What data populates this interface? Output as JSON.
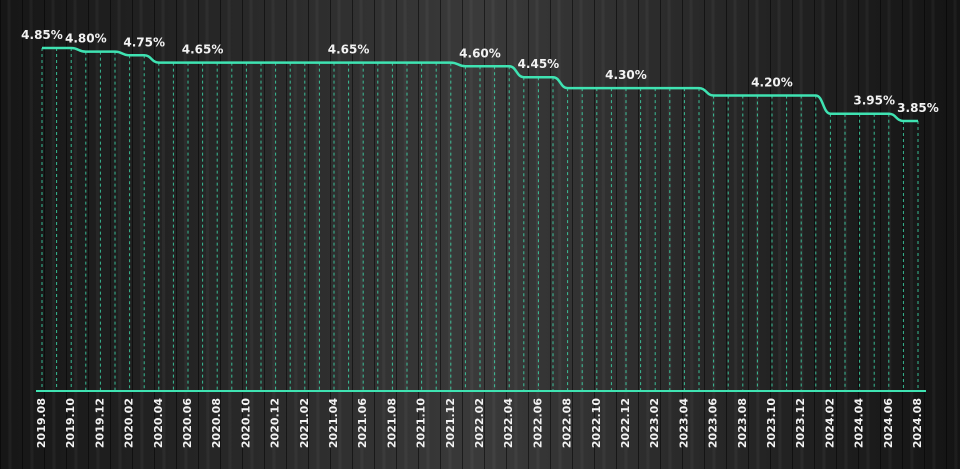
{
  "chart_data": {
    "type": "line",
    "categories": [
      "2019.08",
      null,
      "2019.10",
      null,
      "2019.12",
      null,
      "2020.02",
      null,
      "2020.04",
      null,
      "2020.06",
      null,
      "2020.08",
      null,
      "2020.10",
      null,
      "2020.12",
      null,
      "2021.02",
      null,
      "2021.04",
      null,
      "2021.06",
      null,
      "2021.08",
      null,
      "2021.10",
      null,
      "2021.12",
      null,
      "2022.02",
      null,
      "2022.04",
      null,
      "2022.06",
      null,
      "2022.08",
      null,
      "2022.10",
      null,
      "2022.12",
      null,
      "2023.02",
      null,
      "2023.04",
      null,
      "2023.06",
      null,
      "2023.08",
      null,
      "2023.10",
      null,
      "2023.12",
      null,
      "2024.02",
      null,
      "2024.04",
      null,
      "2024.06",
      null,
      "2024.08"
    ],
    "values": [
      4.85,
      4.85,
      4.85,
      4.8,
      4.8,
      4.8,
      4.75,
      4.75,
      4.65,
      4.65,
      4.65,
      4.65,
      4.65,
      4.65,
      4.65,
      4.65,
      4.65,
      4.65,
      4.65,
      4.65,
      4.65,
      4.65,
      4.65,
      4.65,
      4.65,
      4.65,
      4.65,
      4.65,
      4.65,
      4.6,
      4.6,
      4.6,
      4.6,
      4.45,
      4.45,
      4.45,
      4.3,
      4.3,
      4.3,
      4.3,
      4.3,
      4.3,
      4.3,
      4.3,
      4.3,
      4.3,
      4.2,
      4.2,
      4.2,
      4.2,
      4.2,
      4.2,
      4.2,
      4.2,
      3.95,
      3.95,
      3.95,
      3.95,
      3.95,
      3.85,
      3.85
    ],
    "value_labels": [
      "4.85%",
      null,
      null,
      "4.80%",
      null,
      null,
      null,
      "4.75%",
      null,
      null,
      null,
      "4.65%",
      null,
      null,
      null,
      null,
      null,
      null,
      null,
      null,
      null,
      "4.65%",
      null,
      null,
      null,
      null,
      null,
      null,
      null,
      null,
      "4.60%",
      null,
      null,
      null,
      "4.45%",
      null,
      null,
      null,
      null,
      null,
      "4.30%",
      null,
      null,
      null,
      null,
      null,
      null,
      null,
      null,
      null,
      "4.20%",
      null,
      null,
      null,
      null,
      null,
      null,
      "3.95%",
      null,
      null,
      "3.85%"
    ],
    "color": "#3fe3b2"
  }
}
